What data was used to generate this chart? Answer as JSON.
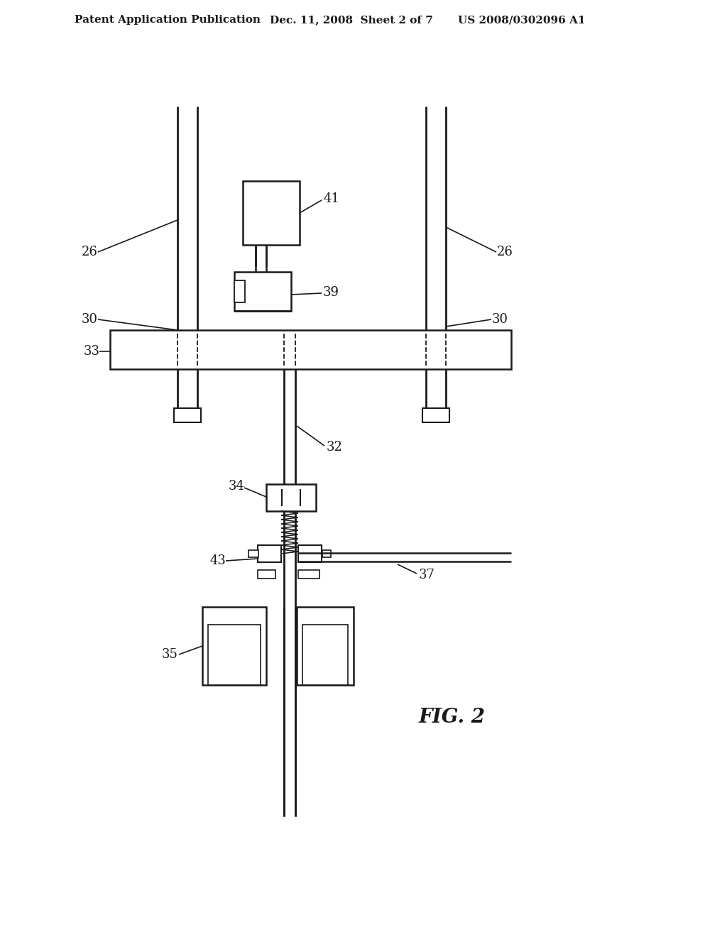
{
  "bg_color": "#ffffff",
  "line_color": "#1a1a1a",
  "header_left": "Patent Application Publication",
  "header_mid": "Dec. 11, 2008  Sheet 2 of 7",
  "header_right": "US 2008/0302096 A1",
  "fig_label": "FIG. 2"
}
